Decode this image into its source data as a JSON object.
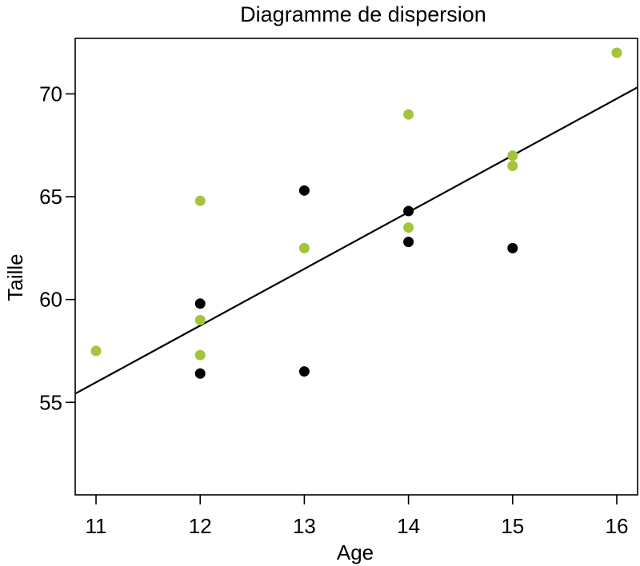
{
  "chart_data": {
    "type": "scatter",
    "title": "Diagramme de dispersion",
    "xlabel": "Age",
    "ylabel": "Taille",
    "xlim": [
      10.8,
      16.2
    ],
    "ylim": [
      50.5,
      72.7
    ],
    "xticks": [
      11,
      12,
      13,
      14,
      15,
      16
    ],
    "yticks": [
      55,
      60,
      65,
      70
    ],
    "grid": false,
    "legend": "none",
    "series": [
      {
        "color": "#000000",
        "points": [
          {
            "x": 12,
            "y": 59.8
          },
          {
            "x": 12,
            "y": 56.4
          },
          {
            "x": 13,
            "y": 65.3
          },
          {
            "x": 13,
            "y": 56.5
          },
          {
            "x": 14,
            "y": 64.3
          },
          {
            "x": 14,
            "y": 62.8
          },
          {
            "x": 15,
            "y": 62.5
          }
        ]
      },
      {
        "color": "#a3c43b",
        "points": [
          {
            "x": 11,
            "y": 57.5
          },
          {
            "x": 12,
            "y": 64.8
          },
          {
            "x": 12,
            "y": 59.0
          },
          {
            "x": 12,
            "y": 57.3
          },
          {
            "x": 13,
            "y": 62.5
          },
          {
            "x": 14,
            "y": 69.0
          },
          {
            "x": 14,
            "y": 63.5
          },
          {
            "x": 15,
            "y": 67.0
          },
          {
            "x": 15,
            "y": 66.5
          },
          {
            "x": 16,
            "y": 72.0
          }
        ]
      }
    ],
    "regression_line": {
      "color": "#000000",
      "points": [
        {
          "x": 10.8,
          "y": 55.42
        },
        {
          "x": 16.2,
          "y": 70.32
        }
      ]
    }
  }
}
